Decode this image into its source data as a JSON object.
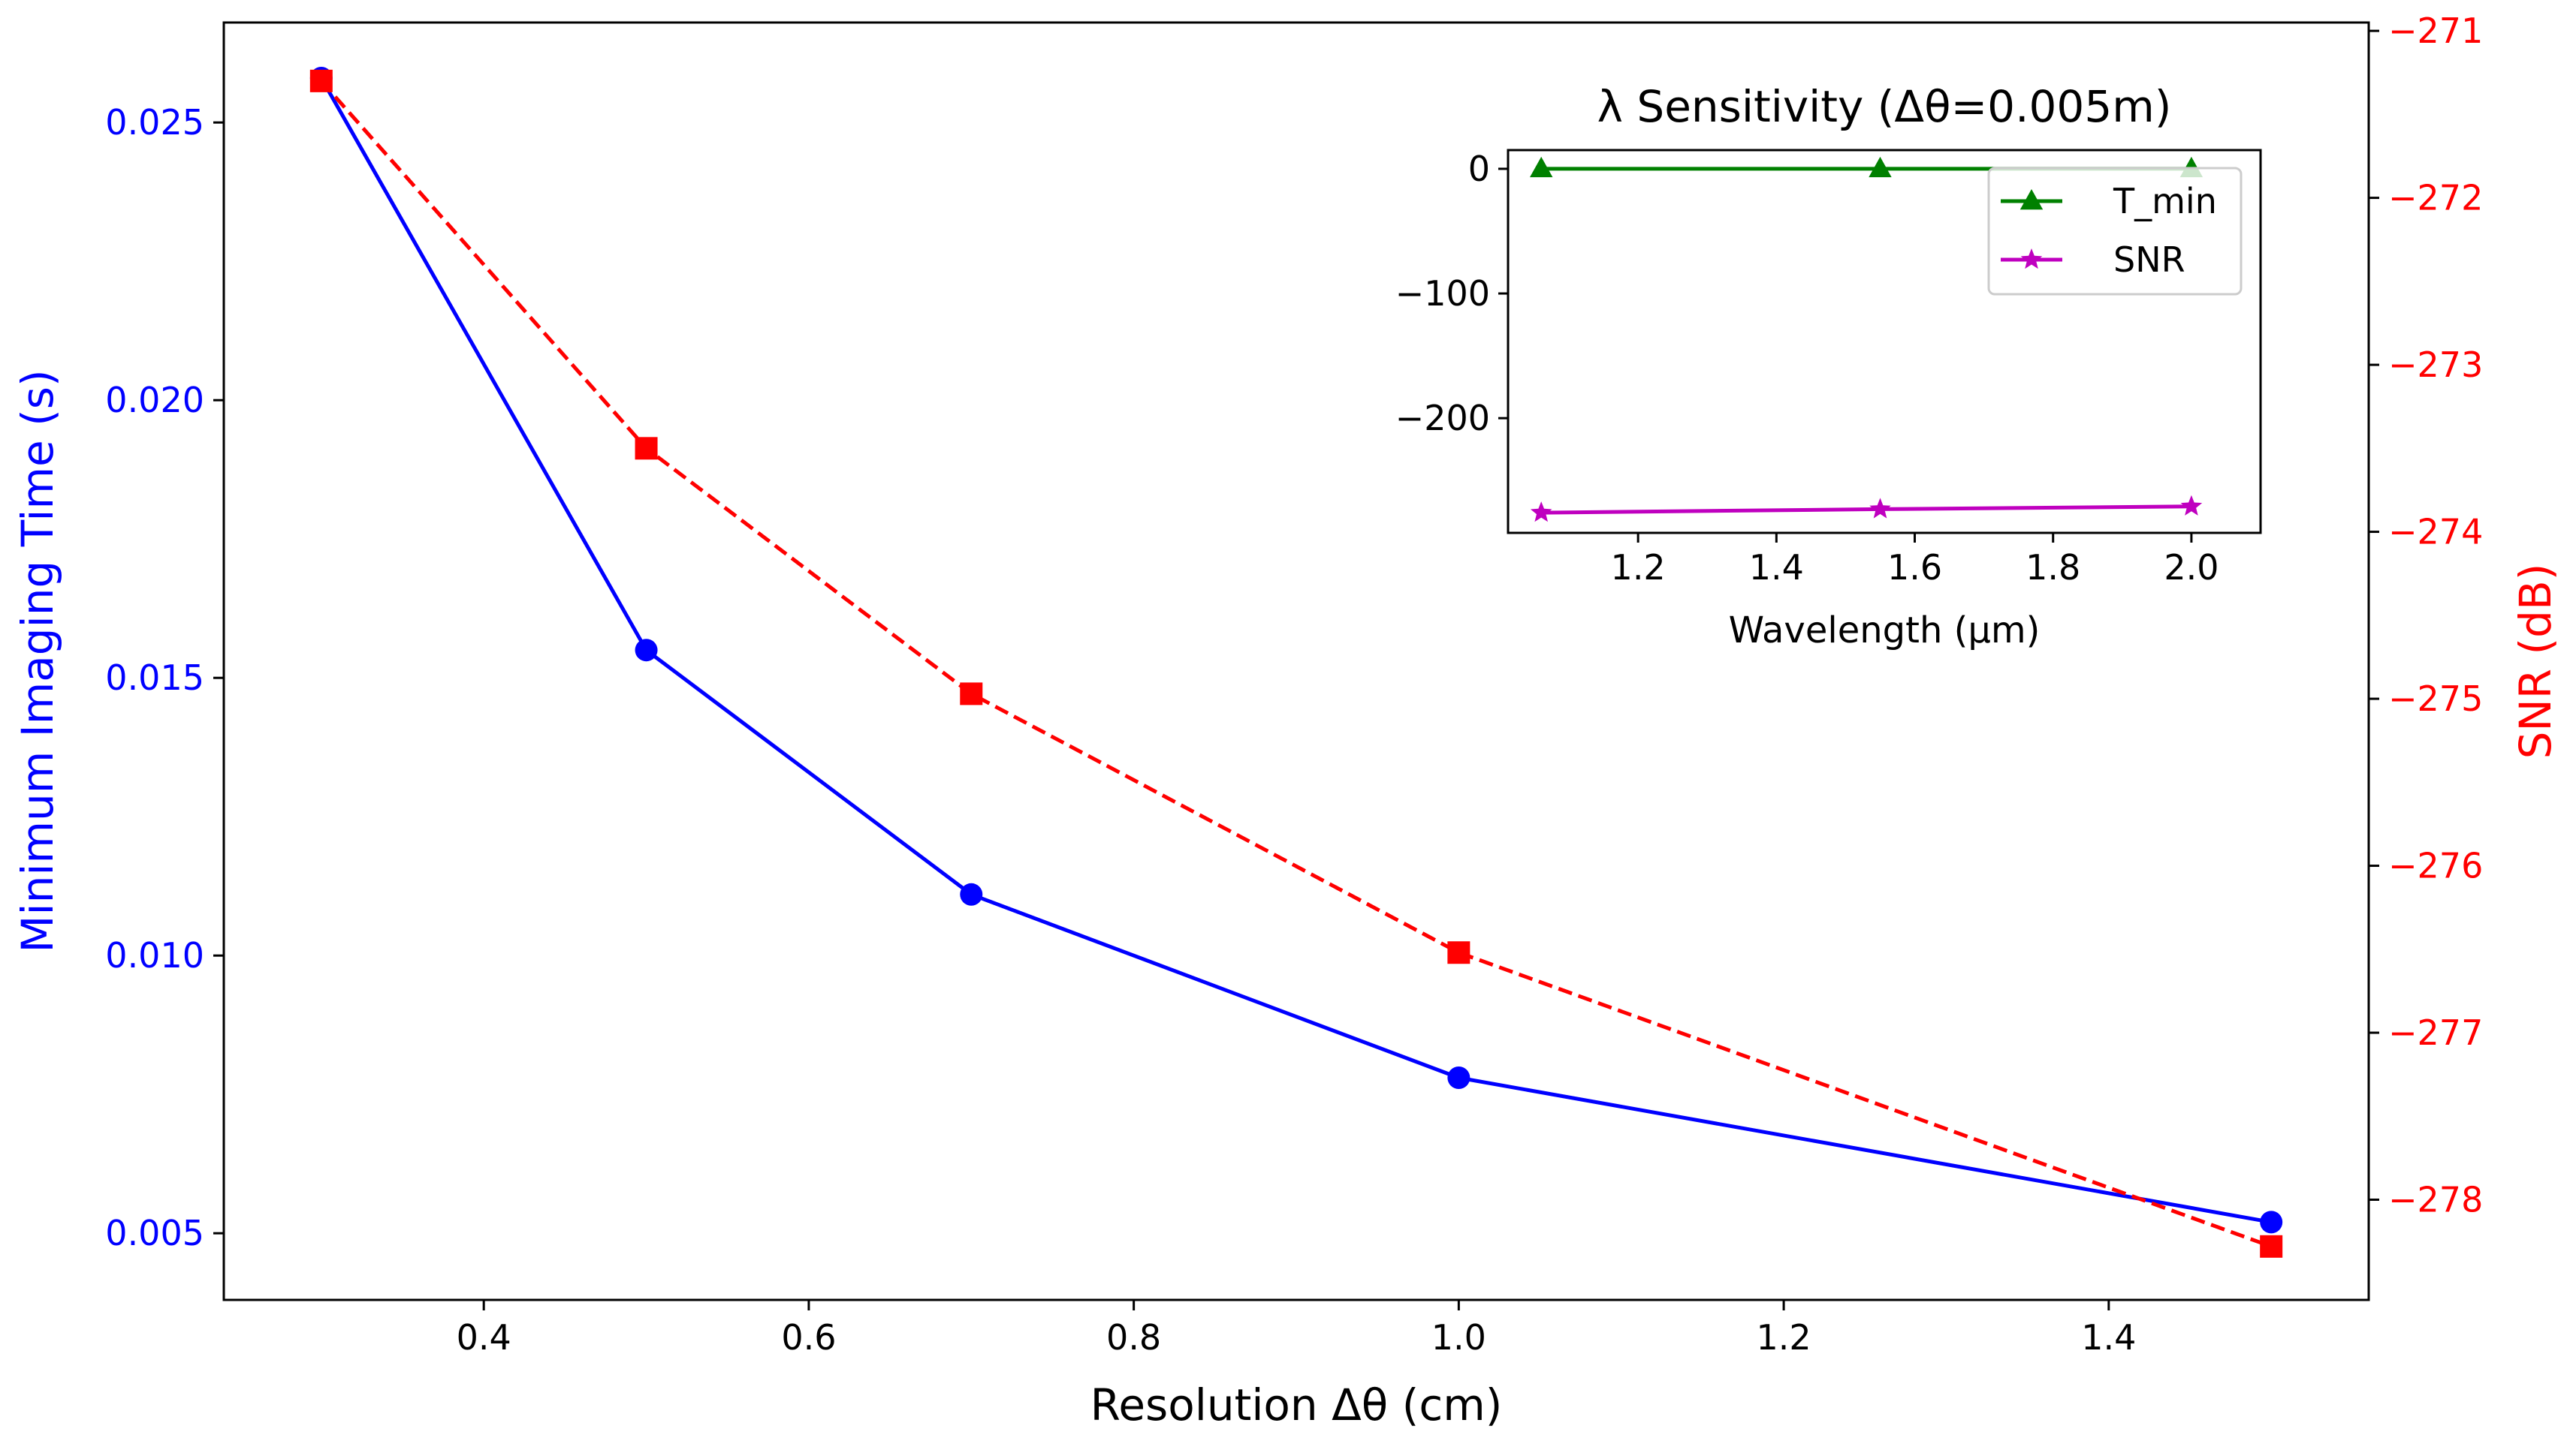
{
  "chart_data": [
    {
      "type": "line",
      "role": "main",
      "title": "",
      "xlabel": "Resolution Δθ (cm)",
      "ylabel_left": "Minimum Imaging Time (s)",
      "ylabel_right": "SNR (dB)",
      "xlim": [
        0.24,
        1.56
      ],
      "ylim_left": [
        0.0038,
        0.0268
      ],
      "ylim_right": [
        -278.6,
        -270.95
      ],
      "x_ticks": [
        0.4,
        0.6,
        0.8,
        1.0,
        1.2,
        1.4
      ],
      "x_tick_labels": [
        "0.4",
        "0.6",
        "0.8",
        "1.0",
        "1.2",
        "1.4"
      ],
      "y_left_ticks": [
        0.005,
        0.01,
        0.015,
        0.02,
        0.025
      ],
      "y_left_tick_labels": [
        "0.005",
        "0.010",
        "0.015",
        "0.020",
        "0.025"
      ],
      "y_right_ticks": [
        -271,
        -272,
        -273,
        -274,
        -275,
        -276,
        -277,
        -278
      ],
      "y_right_tick_labels": [
        "−271",
        "−272",
        "−273",
        "−274",
        "−275",
        "−276",
        "−277",
        "−278"
      ],
      "x": [
        0.3,
        0.5,
        0.7,
        1.0,
        1.5
      ],
      "series": [
        {
          "name": "Minimum Imaging Time",
          "axis": "left",
          "marker": "circle",
          "line": "solid",
          "color": "#0000ff",
          "values": [
            0.0258,
            0.0155,
            0.0111,
            0.0078,
            0.0052
          ]
        },
        {
          "name": "SNR",
          "axis": "right",
          "marker": "square",
          "line": "dashed",
          "color": "#ff0000",
          "values": [
            -271.3,
            -273.5,
            -274.97,
            -276.52,
            -278.28
          ]
        }
      ],
      "colors": {
        "left_axis": "#0000ff",
        "right_axis": "#ff0000"
      }
    },
    {
      "type": "line",
      "role": "inset",
      "title": "λ Sensitivity (Δθ=0.005m)",
      "xlabel": "Wavelength (µm)",
      "ylabel": "",
      "xlim": [
        1.012,
        2.1
      ],
      "ylim": [
        -292,
        15
      ],
      "x_ticks": [
        1.2,
        1.4,
        1.6,
        1.8,
        2.0
      ],
      "x_tick_labels": [
        "1.2",
        "1.4",
        "1.6",
        "1.8",
        "2.0"
      ],
      "y_ticks": [
        0,
        -100,
        -200
      ],
      "y_tick_labels": [
        "0",
        "−100",
        "−200"
      ],
      "x": [
        1.06,
        1.55,
        2.0
      ],
      "series": [
        {
          "name": "T_min",
          "marker": "triangle",
          "color": "#008000",
          "values": [
            0.024,
            0.016,
            0.012
          ]
        },
        {
          "name": "SNR",
          "marker": "star",
          "color": "#bf00bf",
          "values": [
            -275.8,
            -273.0,
            -270.8
          ]
        }
      ],
      "legend": {
        "location": "top-right",
        "entries": [
          "T_min",
          "SNR"
        ]
      }
    }
  ]
}
